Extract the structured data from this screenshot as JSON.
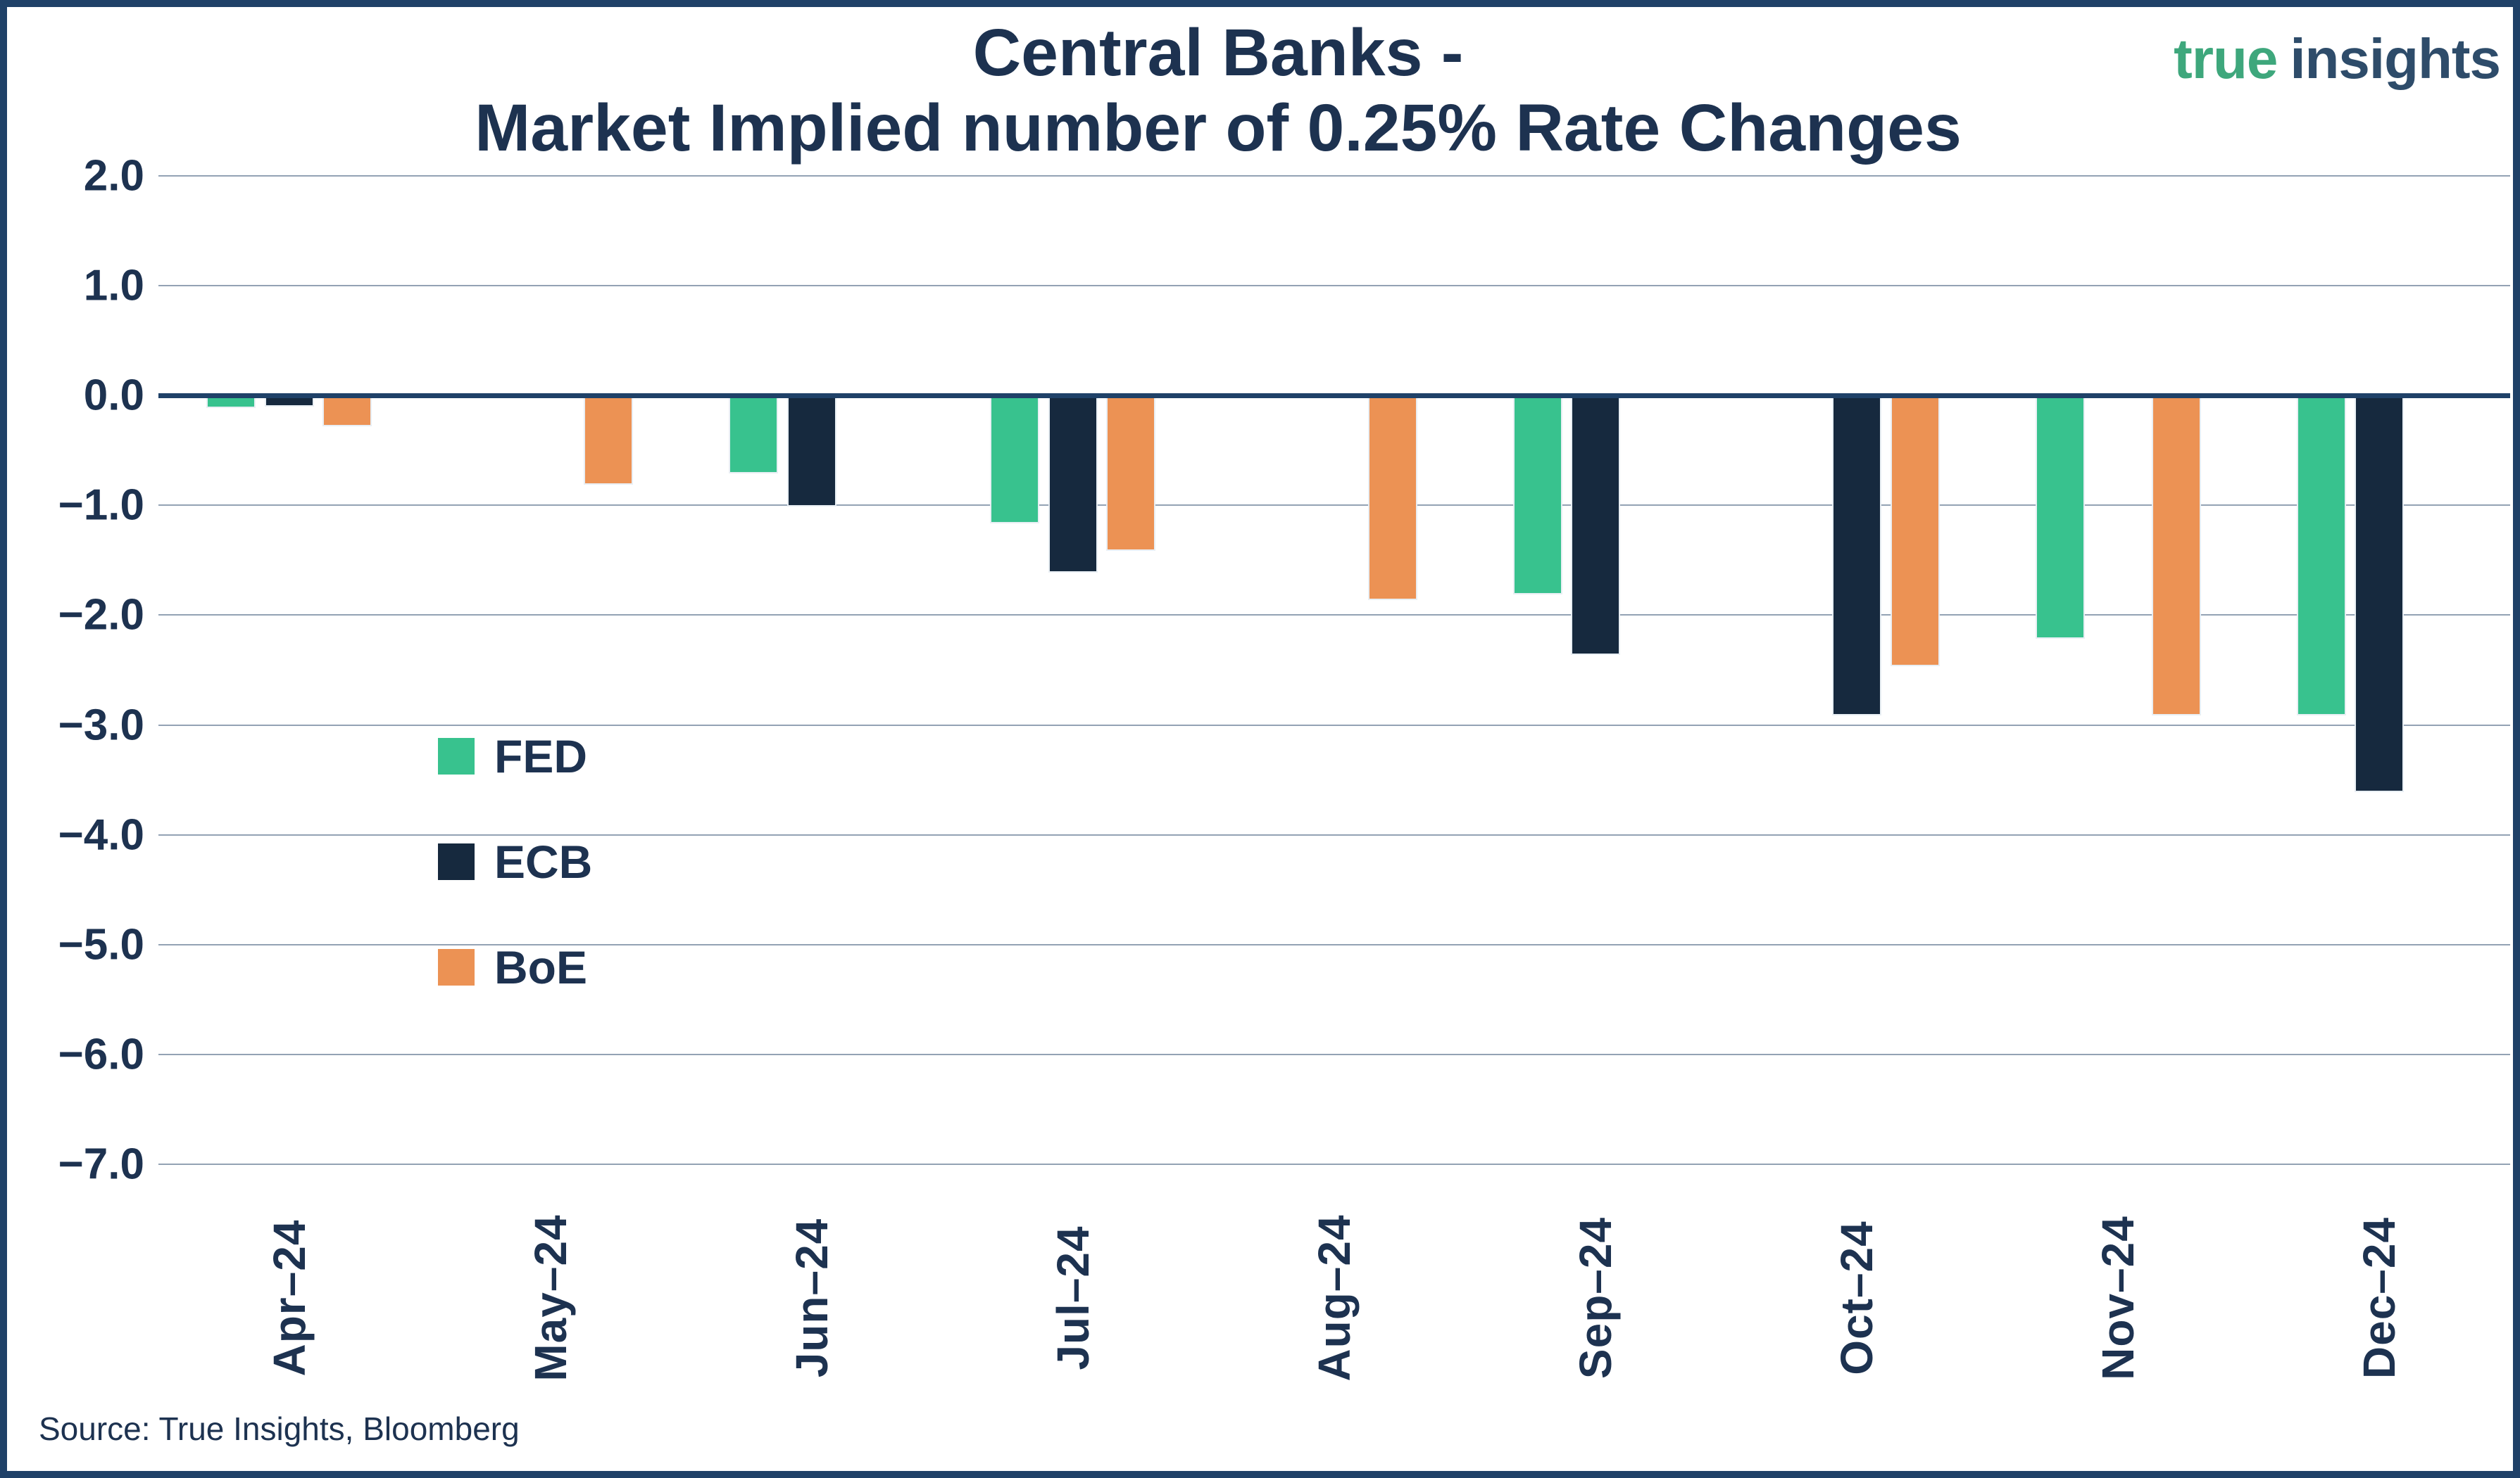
{
  "title": {
    "line1": "Central Banks -",
    "line2": "Market Implied number of 0.25% Rate Changes"
  },
  "logo": {
    "word1": "true",
    "word2": "insights",
    "word1_color": "#3ea77c",
    "word2_color": "#2e4c6a"
  },
  "source": "Source: True Insights, Bloomberg",
  "colors": {
    "text": "#1d3250",
    "zero_line": "#1f4168",
    "gridline": "#93a2b4",
    "border": "#1f4168"
  },
  "chart_data": {
    "type": "bar",
    "title": "Central Banks - Market Implied number of 0.25% Rate Changes",
    "categories": [
      "Apr–24",
      "May–24",
      "Jun–24",
      "Jul–24",
      "Aug–24",
      "Sep–24",
      "Oct–24",
      "Nov–24",
      "Dec–24"
    ],
    "series": [
      {
        "name": "FED",
        "color": "#38c28e",
        "values": [
          -0.1,
          null,
          -0.7,
          -1.15,
          null,
          -1.8,
          null,
          -2.2,
          -2.9
        ]
      },
      {
        "name": "ECB",
        "color": "#16293e",
        "values": [
          -0.09,
          null,
          -1.0,
          -1.6,
          null,
          -2.35,
          -2.9,
          null,
          -3.6
        ]
      },
      {
        "name": "BoE",
        "color": "#ec9254",
        "values": [
          -0.27,
          -0.8,
          null,
          -1.4,
          -1.85,
          null,
          -2.45,
          -2.9,
          null
        ]
      }
    ],
    "ylim": [
      -7.0,
      2.0
    ],
    "ytick_step": 1.0,
    "ytick_labels": [
      "2.0",
      "1.0",
      "0.0",
      "−1.0",
      "−2.0",
      "−3.0",
      "−4.0",
      "−5.0",
      "−6.0",
      "−7.0"
    ],
    "xlabel": "",
    "ylabel": "",
    "grid": true,
    "legend_position": "inside-left",
    "legend_entries": [
      "FED",
      "ECB",
      "BoE"
    ]
  }
}
